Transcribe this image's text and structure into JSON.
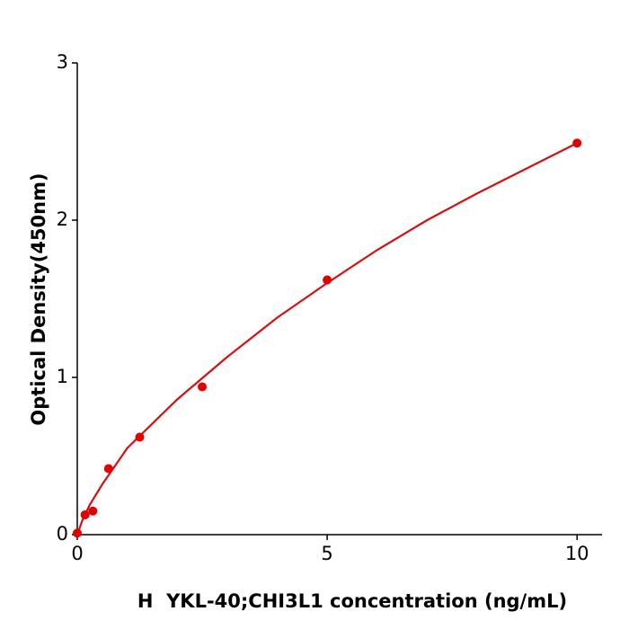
{
  "chart_data": {
    "type": "scatter",
    "xlabel": "H  YKL-40;CHI3L1 concentration (ng/mL)",
    "ylabel": "Optical Density(450nm)",
    "xlim": [
      0,
      10.5
    ],
    "ylim": [
      0,
      3
    ],
    "xticks": [
      0,
      5,
      10
    ],
    "yticks": [
      0,
      1,
      2,
      3
    ],
    "points": {
      "color": "#e00000",
      "x": [
        0,
        0.156,
        0.3125,
        0.625,
        1.25,
        2.5,
        5,
        10
      ],
      "y": [
        0.01,
        0.126,
        0.15,
        0.42,
        0.62,
        0.94,
        1.62,
        2.49
      ]
    },
    "curve": {
      "color": "#d41010",
      "x": [
        0,
        0.1,
        0.25,
        0.5,
        1,
        2,
        3,
        4,
        5,
        6,
        7,
        8,
        9,
        10
      ],
      "y": [
        0,
        0.09,
        0.19,
        0.32,
        0.55,
        0.86,
        1.13,
        1.38,
        1.6,
        1.81,
        2.0,
        2.17,
        2.33,
        2.49
      ]
    }
  }
}
